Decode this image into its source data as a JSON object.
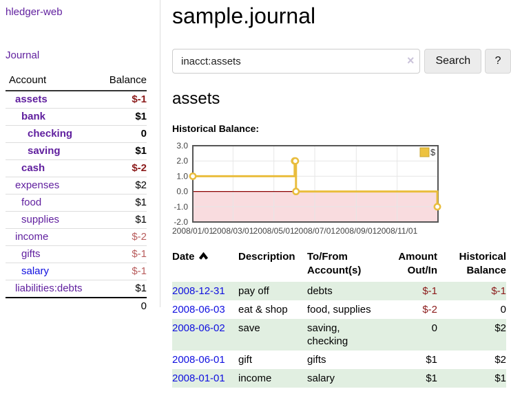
{
  "app": {
    "brand": "hledger-web"
  },
  "sidebar": {
    "journal_link": "Journal",
    "accounts_table": {
      "account_header": "Account",
      "balance_header": "Balance",
      "rows": [
        {
          "name": "assets",
          "balance": "$-1"
        },
        {
          "name": "bank",
          "balance": "$1"
        },
        {
          "name": "checking",
          "balance": "0"
        },
        {
          "name": "saving",
          "balance": "$1"
        },
        {
          "name": "cash",
          "balance": "$-2"
        },
        {
          "name": "expenses",
          "balance": "$2"
        },
        {
          "name": "food",
          "balance": "$1"
        },
        {
          "name": "supplies",
          "balance": "$1"
        },
        {
          "name": "income",
          "balance": "$-2"
        },
        {
          "name": "gifts",
          "balance": "$-1"
        },
        {
          "name": "salary",
          "balance": "$-1"
        },
        {
          "name": "liabilities:debts",
          "balance": "$1"
        }
      ],
      "total": "0"
    }
  },
  "header": {
    "title": "sample.journal"
  },
  "search": {
    "value": "inacct:assets",
    "clear_icon": "×",
    "button_label": "Search",
    "help_label": "?"
  },
  "account_page": {
    "heading": "assets",
    "chart_label": "Historical Balance:"
  },
  "chart_data": {
    "type": "line",
    "step": true,
    "title": "Historical Balance:",
    "xlim": [
      "2008-01-01",
      "2009-01-01"
    ],
    "ylim": [
      -2,
      3
    ],
    "y_ticks": [
      3.0,
      2.0,
      1.0,
      0.0,
      -1.0,
      -2.0
    ],
    "x_ticks": [
      {
        "date": "2008-01-01",
        "label": "2008/01/01"
      },
      {
        "date": "2008-03-01",
        "label": "2008/03/01"
      },
      {
        "date": "2008-05-01",
        "label": "2008/05/01"
      },
      {
        "date": "2008-07-01",
        "label": "2008/07/01"
      },
      {
        "date": "2008-09-01",
        "label": "2008/09/01"
      },
      {
        "date": "2008-11-01",
        "label": "2008/11/01"
      }
    ],
    "series": [
      {
        "name": "$",
        "color": "#e9bd3d",
        "points": [
          [
            "2008-01-01",
            1
          ],
          [
            "2008-06-01",
            2
          ],
          [
            "2008-06-02",
            2
          ],
          [
            "2008-06-03",
            0
          ],
          [
            "2008-12-31",
            -1
          ]
        ]
      }
    ],
    "legend": [
      {
        "label": "$",
        "color": "#edc240"
      }
    ],
    "legend_position": "top-right",
    "grid": true,
    "colors": {
      "grid": "#e6e6e6",
      "border": "#555555",
      "zero_line": "#8b0000",
      "negative_region": "#f9dcdf",
      "tick_text": "#444444",
      "marker_fill": "#ffffff"
    }
  },
  "register": {
    "headers": {
      "date": "Date",
      "description": "Description",
      "tofrom": "To/From Account(s)",
      "amount": "Amount Out/In",
      "balance": "Historical Balance"
    },
    "rows": [
      {
        "date": "2008-12-31",
        "description": "pay off",
        "accounts": "debts",
        "amount": "$-1",
        "balance": "$-1"
      },
      {
        "date": "2008-06-03",
        "description": "eat & shop",
        "accounts": "food, supplies",
        "amount": "$-2",
        "balance": "0"
      },
      {
        "date": "2008-06-02",
        "description": "save",
        "accounts": "saving, checking",
        "amount": "0",
        "balance": "$2"
      },
      {
        "date": "2008-06-01",
        "description": "gift",
        "accounts": "gifts",
        "amount": "$1",
        "balance": "$2"
      },
      {
        "date": "2008-01-01",
        "description": "income",
        "accounts": "salary",
        "amount": "$1",
        "balance": "$1"
      }
    ]
  }
}
